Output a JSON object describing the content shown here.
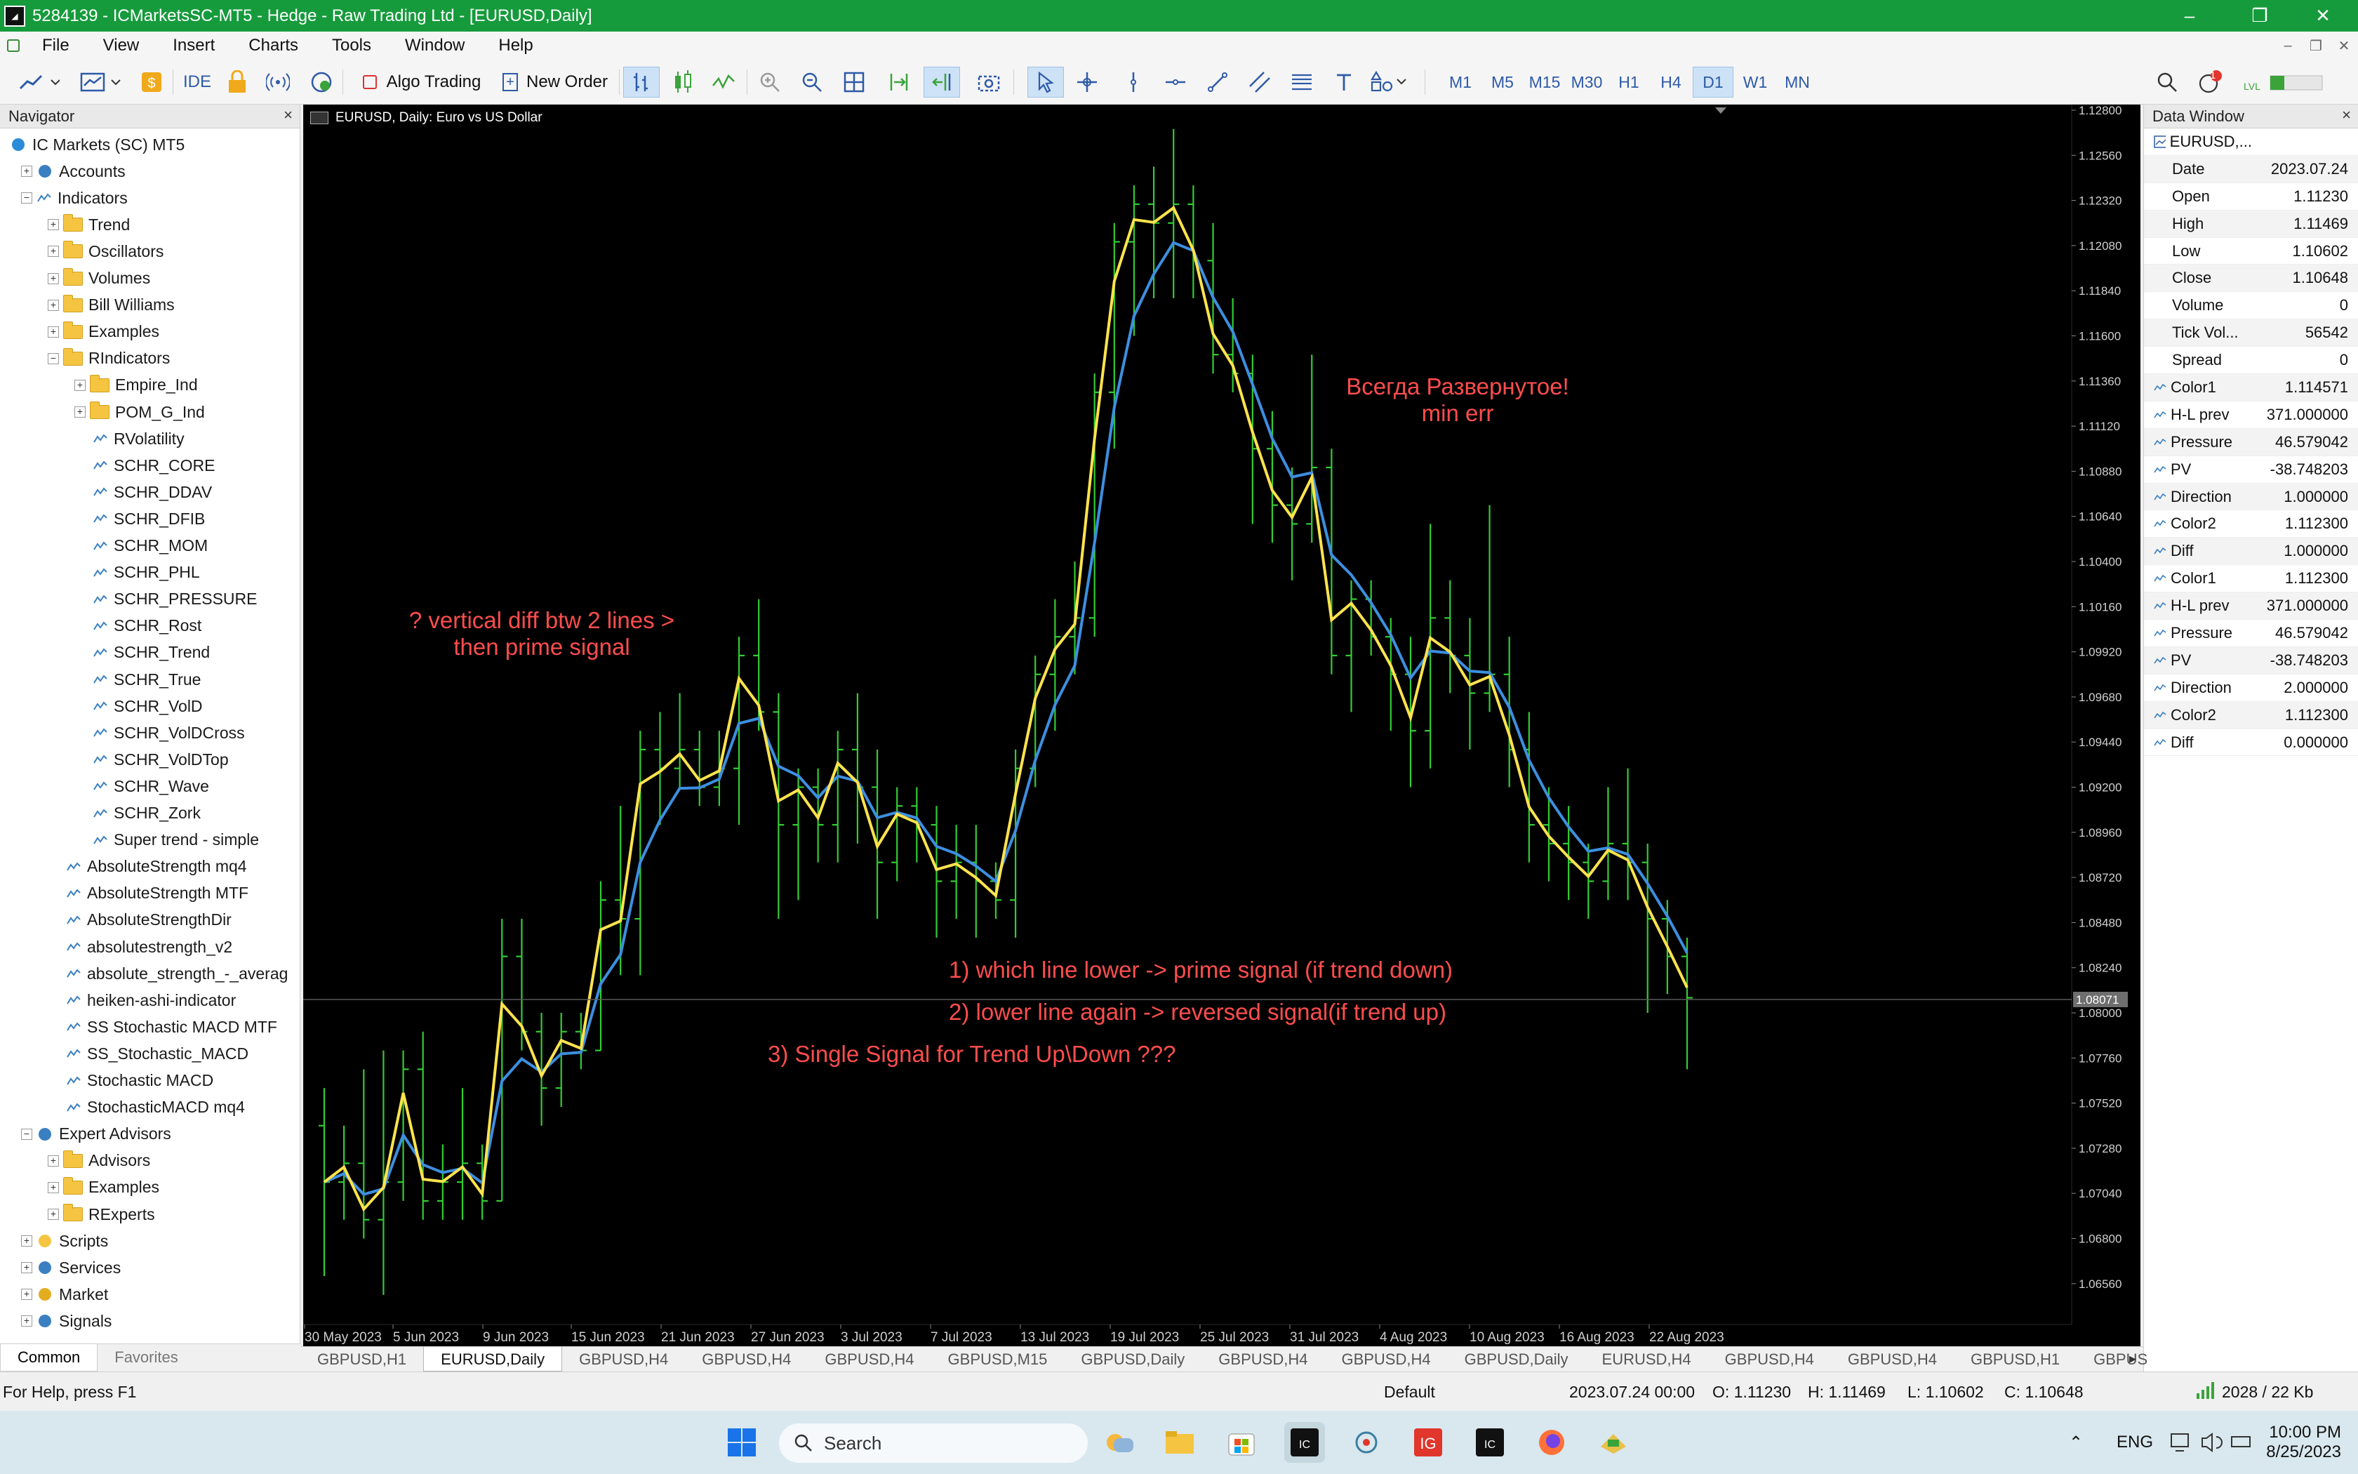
{
  "window": {
    "title": "5284139 - ICMarketsSC-MT5 - Hedge - Raw Trading Ltd - [EURUSD,Daily]",
    "minimize": "–",
    "restore": "❐",
    "close": "✕"
  },
  "menu": [
    "File",
    "View",
    "Insert",
    "Charts",
    "Tools",
    "Window",
    "Help"
  ],
  "toolbar": {
    "ide_label": "IDE",
    "algo_trading_label": "Algo Trading",
    "new_order_label": "New Order",
    "timeframes": [
      "M1",
      "M5",
      "M15",
      "M30",
      "H1",
      "H4",
      "D1",
      "W1",
      "MN"
    ],
    "active_timeframe": "D1",
    "notification_count": "1"
  },
  "navigator": {
    "title": "Navigator",
    "root": "IC Markets (SC) MT5",
    "accounts": "Accounts",
    "indicators": "Indicators",
    "folders": [
      "Trend",
      "Oscillators",
      "Volumes",
      "Bill Williams",
      "Examples",
      "RIndicators"
    ],
    "rindicators_folders": [
      "Empire_Ind",
      "POM_G_Ind"
    ],
    "rindicators_items": [
      "RVolatility",
      "SCHR_CORE",
      "SCHR_DDAV",
      "SCHR_DFIB",
      "SCHR_MOM",
      "SCHR_PHL",
      "SCHR_PRESSURE",
      "SCHR_Rost",
      "SCHR_Trend",
      "SCHR_True",
      "SCHR_VolD",
      "SCHR_VolDCross",
      "SCHR_VolDTop",
      "SCHR_Wave",
      "SCHR_Zork",
      "Super trend - simple"
    ],
    "indicator_items": [
      "AbsoluteStrength mq4",
      "AbsoluteStrength MTF",
      "AbsoluteStrengthDir",
      "absolutestrength_v2",
      "absolute_strength_-_averag",
      "heiken-ashi-indicator",
      "SS Stochastic MACD MTF",
      "SS_Stochastic_MACD",
      "Stochastic MACD",
      "StochasticMACD mq4"
    ],
    "expert_advisors": "Expert Advisors",
    "ea_folders": [
      "Advisors",
      "Examples",
      "RExperts"
    ],
    "bottom": [
      "Scripts",
      "Services",
      "Market",
      "Signals"
    ],
    "tabs": [
      "Common",
      "Favorites"
    ]
  },
  "chart": {
    "title": "EURUSD, Daily:  Euro vs US Dollar",
    "price_labels": [
      "1.12800",
      "1.12560",
      "1.12320",
      "1.12080",
      "1.11840",
      "1.11600",
      "1.11360",
      "1.11120",
      "1.10880",
      "1.10640",
      "1.10400",
      "1.10160",
      "1.09920",
      "1.09680",
      "1.09440",
      "1.09200",
      "1.08960",
      "1.08720",
      "1.08480",
      "1.08240",
      "1.08000",
      "1.07760",
      "1.07520",
      "1.07280",
      "1.07040",
      "1.06800",
      "1.06560"
    ],
    "current_price": "1.08071",
    "date_labels": [
      "30 May 2023",
      "5 Jun 2023",
      "9 Jun 2023",
      "15 Jun 2023",
      "21 Jun 2023",
      "27 Jun 2023",
      "3 Jul 2023",
      "7 Jul 2023",
      "13 Jul 2023",
      "19 Jul 2023",
      "25 Jul 2023",
      "31 Jul 2023",
      "4 Aug 2023",
      "10 Aug 2023",
      "16 Aug 2023",
      "22 Aug 2023"
    ],
    "annotation_1": [
      "? vertical diff btw 2 lines >",
      "then prime signal"
    ],
    "annotation_2": [
      "Всегда Развернутое!",
      "min err"
    ],
    "annotation_3": "1) which line lower -> prime signal (if trend down)",
    "annotation_4": "2) lower line again -> reversed signal(if trend up)",
    "annotation_5": "3) Single Signal for Trend Up\\Down ???",
    "colors": {
      "bars": "#32cd32",
      "line_fast": "#ffe34d",
      "line_slow": "#3d8fe0",
      "annotation": "#ff4d4d"
    }
  },
  "data_window": {
    "title": "Data Window",
    "symbol": "EURUSD,...",
    "rows": [
      {
        "k": "Date",
        "v": "2023.07.24"
      },
      {
        "k": "Open",
        "v": "1.11230"
      },
      {
        "k": "High",
        "v": "1.11469"
      },
      {
        "k": "Low",
        "v": "1.10602"
      },
      {
        "k": "Close",
        "v": "1.10648"
      },
      {
        "k": "Volume",
        "v": "0"
      },
      {
        "k": "Tick Vol...",
        "v": "56542"
      },
      {
        "k": "Spread",
        "v": "0"
      },
      {
        "k": "Color1",
        "v": "1.114571",
        "ind": true
      },
      {
        "k": "H-L prev",
        "v": "371.000000",
        "ind": true
      },
      {
        "k": "Pressure",
        "v": "46.579042",
        "ind": true
      },
      {
        "k": "PV",
        "v": "-38.748203",
        "ind": true
      },
      {
        "k": "Direction",
        "v": "1.000000",
        "ind": true
      },
      {
        "k": "Color2",
        "v": "1.112300",
        "ind": true
      },
      {
        "k": "Diff",
        "v": "1.000000",
        "ind": true
      },
      {
        "k": "Color1",
        "v": "1.112300",
        "ind": true
      },
      {
        "k": "H-L prev",
        "v": "371.000000",
        "ind": true
      },
      {
        "k": "Pressure",
        "v": "46.579042",
        "ind": true
      },
      {
        "k": "PV",
        "v": "-38.748203",
        "ind": true
      },
      {
        "k": "Direction",
        "v": "2.000000",
        "ind": true
      },
      {
        "k": "Color2",
        "v": "1.112300",
        "ind": true
      },
      {
        "k": "Diff",
        "v": "0.000000",
        "ind": true
      }
    ]
  },
  "chart_tabs": [
    "GBPUSD,H1",
    "EURUSD,Daily",
    "GBPUSD,H4",
    "GBPUSD,H4",
    "GBPUSD,H4",
    "GBPUSD,M15",
    "GBPUSD,Daily",
    "GBPUSD,H4",
    "GBPUSD,H4",
    "GBPUSD,Daily",
    "EURUSD,H4",
    "GBPUSD,H4",
    "GBPUSD,H4",
    "GBPUSD,H1",
    "GBPUS"
  ],
  "active_chart_tab": "EURUSD,Daily",
  "status": {
    "help": "For Help, press F1",
    "profile": "Default",
    "datetime": "2023.07.24 00:00",
    "open": "O: 1.11230",
    "high": "H: 1.11469",
    "low": "L: 1.10602",
    "close": "C: 1.10648",
    "traffic": "2028 / 22 Kb"
  },
  "taskbar": {
    "search_label": "Search",
    "lang": "ENG",
    "time": "10:00 PM",
    "date": "8/25/2023"
  }
}
